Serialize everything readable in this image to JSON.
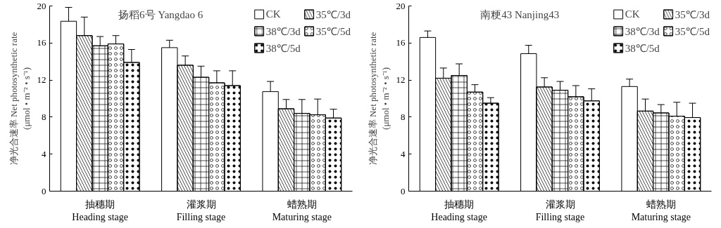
{
  "chart_data": [
    {
      "type": "bar",
      "title": "扬稻6号 Yangdao 6",
      "ylabel": "净光合速率 Net photosynthetic rate\n(μmol • m⁻² • s⁻¹)",
      "categories": [
        "抽穗期\nHeading stage",
        "灌浆期\nFilling stage",
        "蜡熟期\nMaturing stage"
      ],
      "ylim": [
        0,
        20
      ],
      "yticks": [
        0,
        4,
        8,
        12,
        16,
        20
      ],
      "grid": false,
      "legend": "top right",
      "series": [
        {
          "name": "CK",
          "color": "#ffffff",
          "values": [
            18.35,
            15.5,
            10.75
          ],
          "errors": [
            1.5,
            0.8,
            1.1
          ]
        },
        {
          "name": "35℃/3d",
          "color": "#ffffff",
          "values": [
            16.8,
            13.6,
            8.9
          ],
          "errors": [
            2.0,
            1.0,
            1.0
          ]
        },
        {
          "name": "38℃/3d",
          "color": "#ffffff",
          "values": [
            15.7,
            12.3,
            8.4
          ],
          "errors": [
            1.0,
            1.2,
            1.5
          ]
        },
        {
          "name": "35℃/5d",
          "color": "#ffffff",
          "values": [
            15.9,
            11.7,
            8.25
          ],
          "errors": [
            0.9,
            1.3,
            1.7
          ]
        },
        {
          "name": "38℃/5d",
          "color": "#ffffff",
          "values": [
            13.9,
            11.4,
            7.9
          ],
          "errors": [
            1.4,
            1.6,
            0.95
          ]
        }
      ]
    },
    {
      "type": "bar",
      "title": "南粳43 Nanjing43",
      "ylabel": "净光合速率 Net photosynthetic rate\n(μmol • m⁻² • s⁻¹)",
      "categories": [
        "抽穗期\nHeading stage",
        "灌浆期\nFilling stage",
        "蜡熟期\nMaturing stage"
      ],
      "ylim": [
        0,
        20
      ],
      "yticks": [
        0,
        4,
        8,
        12,
        16,
        20
      ],
      "grid": false,
      "legend": "top right",
      "series": [
        {
          "name": "CK",
          "color": "#ffffff",
          "values": [
            16.6,
            14.85,
            11.3
          ],
          "errors": [
            0.7,
            0.9,
            0.8
          ]
        },
        {
          "name": "35℃/3d",
          "color": "#ffffff",
          "values": [
            12.2,
            11.25,
            8.65
          ],
          "errors": [
            1.1,
            1.0,
            1.3
          ]
        },
        {
          "name": "38℃/3d",
          "color": "#ffffff",
          "values": [
            12.5,
            10.9,
            8.45
          ],
          "errors": [
            1.25,
            0.95,
            0.9
          ]
        },
        {
          "name": "35℃/5d",
          "color": "#ffffff",
          "values": [
            10.7,
            10.2,
            8.1
          ],
          "errors": [
            0.8,
            1.2,
            1.5
          ]
        },
        {
          "name": "38℃/5d",
          "color": "#ffffff",
          "values": [
            9.5,
            9.75,
            7.95
          ],
          "errors": [
            0.6,
            1.3,
            1.55
          ]
        }
      ]
    }
  ]
}
